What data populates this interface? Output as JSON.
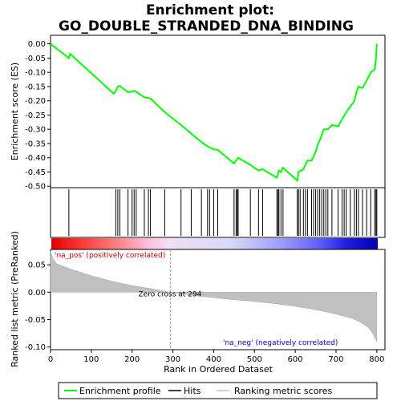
{
  "chart_data": {
    "type": "line",
    "title_line1": "Enrichment plot:",
    "title_line2": "GO_DOUBLE_STRANDED_DNA_BINDING",
    "xlabel": "Rank in Ordered Dataset",
    "es_ylabel": "Enrichment score (ES)",
    "metric_ylabel": "Ranked list metric (PreRanked)",
    "xlim": [
      0,
      820
    ],
    "es_ylim": [
      -0.505,
      0.03
    ],
    "metric_ylim": [
      -0.105,
      0.078
    ],
    "x_ticks": [
      "0",
      "100",
      "200",
      "300",
      "400",
      "500",
      "600",
      "700",
      "800"
    ],
    "x_tick_values": [
      0,
      100,
      200,
      300,
      400,
      500,
      600,
      700,
      800
    ],
    "es_ticks": [
      "0.00",
      "-0.05",
      "-0.10",
      "-0.15",
      "-0.20",
      "-0.25",
      "-0.30",
      "-0.35",
      "-0.40",
      "-0.45",
      "-0.50"
    ],
    "es_tick_values": [
      0.0,
      -0.05,
      -0.1,
      -0.15,
      -0.2,
      -0.25,
      -0.3,
      -0.35,
      -0.4,
      -0.45,
      -0.5
    ],
    "metric_ticks": [
      "0.05",
      "0.00",
      "-0.05",
      "-0.10"
    ],
    "metric_tick_values": [
      0.05,
      0.0,
      -0.05,
      -0.1
    ],
    "zero_cross_label": "Zero cross at 294",
    "zero_cross_x": 294,
    "pos_label": "'na_pos' (positively correlated)",
    "neg_label": "'na_neg' (negatively correlated)",
    "legend": [
      "Enrichment profile",
      "Hits",
      "Ranking metric scores"
    ],
    "colors": {
      "profile": "#00ff00",
      "hits": "#000000",
      "metric_fill": "#c0c0c0",
      "pos_text": "#cc0000",
      "neg_text": "#0000cc",
      "zero_line": "#a0a0a0"
    },
    "es_profile": [
      [
        0,
        0.0
      ],
      [
        45,
        -0.05
      ],
      [
        48,
        -0.035
      ],
      [
        155,
        -0.175
      ],
      [
        160,
        -0.165
      ],
      [
        165,
        -0.15
      ],
      [
        170,
        -0.148
      ],
      [
        190,
        -0.17
      ],
      [
        200,
        -0.168
      ],
      [
        205,
        -0.165
      ],
      [
        210,
        -0.168
      ],
      [
        230,
        -0.188
      ],
      [
        240,
        -0.19
      ],
      [
        245,
        -0.192
      ],
      [
        280,
        -0.24
      ],
      [
        320,
        -0.285
      ],
      [
        345,
        -0.315
      ],
      [
        370,
        -0.345
      ],
      [
        385,
        -0.36
      ],
      [
        400,
        -0.37
      ],
      [
        410,
        -0.372
      ],
      [
        450,
        -0.42
      ],
      [
        455,
        -0.41
      ],
      [
        460,
        -0.4
      ],
      [
        490,
        -0.425
      ],
      [
        495,
        -0.43
      ],
      [
        510,
        -0.445
      ],
      [
        520,
        -0.44
      ],
      [
        555,
        -0.47
      ],
      [
        560,
        -0.445
      ],
      [
        565,
        -0.45
      ],
      [
        570,
        -0.435
      ],
      [
        605,
        -0.48
      ],
      [
        608,
        -0.45
      ],
      [
        620,
        -0.44
      ],
      [
        630,
        -0.41
      ],
      [
        640,
        -0.41
      ],
      [
        650,
        -0.38
      ],
      [
        655,
        -0.355
      ],
      [
        660,
        -0.34
      ],
      [
        670,
        -0.3
      ],
      [
        680,
        -0.3
      ],
      [
        690,
        -0.285
      ],
      [
        705,
        -0.29
      ],
      [
        715,
        -0.265
      ],
      [
        725,
        -0.24
      ],
      [
        735,
        -0.22
      ],
      [
        745,
        -0.2
      ],
      [
        750,
        -0.17
      ],
      [
        755,
        -0.15
      ],
      [
        765,
        -0.155
      ],
      [
        775,
        -0.13
      ],
      [
        785,
        -0.1
      ],
      [
        795,
        -0.09
      ],
      [
        798,
        -0.05
      ],
      [
        800,
        0.0
      ]
    ],
    "hits": [
      45,
      160,
      165,
      170,
      190,
      200,
      205,
      210,
      230,
      240,
      245,
      280,
      320,
      345,
      370,
      385,
      390,
      400,
      410,
      450,
      455,
      458,
      460,
      490,
      510,
      520,
      555,
      558,
      560,
      565,
      570,
      605,
      608,
      612,
      620,
      625,
      630,
      640,
      645,
      650,
      655,
      660,
      665,
      670,
      675,
      680,
      690,
      705,
      715,
      720,
      725,
      735,
      745,
      750,
      755,
      765,
      775,
      785,
      795,
      798,
      800
    ],
    "metric_curve": [
      [
        0,
        0.075
      ],
      [
        5,
        0.062
      ],
      [
        15,
        0.052
      ],
      [
        50,
        0.042
      ],
      [
        100,
        0.03
      ],
      [
        150,
        0.02
      ],
      [
        200,
        0.012
      ],
      [
        250,
        0.006
      ],
      [
        294,
        0.0
      ],
      [
        350,
        -0.006
      ],
      [
        400,
        -0.01
      ],
      [
        450,
        -0.014
      ],
      [
        500,
        -0.017
      ],
      [
        550,
        -0.021
      ],
      [
        600,
        -0.026
      ],
      [
        650,
        -0.032
      ],
      [
        700,
        -0.04
      ],
      [
        740,
        -0.048
      ],
      [
        760,
        -0.055
      ],
      [
        780,
        -0.065
      ],
      [
        790,
        -0.075
      ],
      [
        800,
        -0.09
      ]
    ]
  }
}
